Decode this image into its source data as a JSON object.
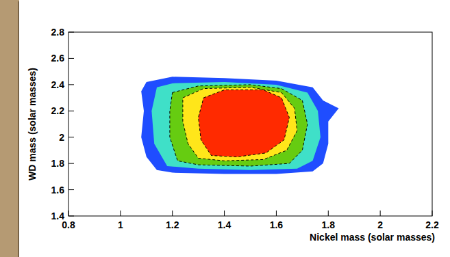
{
  "chart_data": {
    "type": "contour",
    "x_label": "Nickel mass (solar masses)",
    "y_label": "WD mass (solar masses)",
    "xlim": [
      0.8,
      2.2
    ],
    "ylim": [
      1.4,
      2.8
    ],
    "xticks": [
      0.8,
      1,
      1.2,
      1.4,
      1.6,
      1.8,
      2,
      2.2
    ],
    "yticks": [
      1.4,
      1.6,
      1.8,
      2,
      2.2,
      2.4,
      2.6,
      2.8
    ],
    "series": [
      {
        "color": "#1f4dff",
        "x": [
          1.1,
          1.2,
          1.4,
          1.6,
          1.74,
          1.78,
          1.84,
          1.8,
          1.8,
          1.78,
          1.74,
          1.6,
          1.4,
          1.2,
          1.14,
          1.1,
          1.08,
          1.09,
          1.08
        ],
        "values": [
          2.42,
          2.46,
          2.45,
          2.43,
          2.38,
          2.28,
          2.22,
          2.12,
          1.95,
          1.8,
          1.74,
          1.72,
          1.72,
          1.73,
          1.75,
          1.85,
          2.0,
          2.2,
          2.35
        ]
      },
      {
        "color": "#3fe0c8",
        "x": [
          1.14,
          1.2,
          1.4,
          1.6,
          1.72,
          1.76,
          1.77,
          1.74,
          1.68,
          1.5,
          1.3,
          1.18,
          1.13,
          1.12
        ],
        "values": [
          2.38,
          2.41,
          2.42,
          2.4,
          2.34,
          2.2,
          2.0,
          1.82,
          1.76,
          1.75,
          1.76,
          1.78,
          1.95,
          2.2
        ]
      },
      {
        "color": "#66cc11",
        "x": [
          1.2,
          1.3,
          1.5,
          1.62,
          1.7,
          1.72,
          1.7,
          1.65,
          1.5,
          1.3,
          1.22,
          1.19,
          1.19
        ],
        "values": [
          2.34,
          2.39,
          2.4,
          2.37,
          2.28,
          2.1,
          1.9,
          1.8,
          1.78,
          1.79,
          1.82,
          2.0,
          2.2
        ]
      },
      {
        "color": "#ffe61a",
        "x": [
          1.24,
          1.32,
          1.5,
          1.62,
          1.67,
          1.68,
          1.64,
          1.55,
          1.4,
          1.3,
          1.26,
          1.24
        ],
        "values": [
          2.3,
          2.37,
          2.38,
          2.34,
          2.22,
          2.05,
          1.9,
          1.83,
          1.82,
          1.84,
          1.95,
          2.12
        ]
      },
      {
        "color": "#ff2a00",
        "x": [
          1.32,
          1.4,
          1.55,
          1.62,
          1.65,
          1.63,
          1.56,
          1.45,
          1.35,
          1.31,
          1.3
        ],
        "values": [
          2.3,
          2.36,
          2.36,
          2.3,
          2.15,
          1.98,
          1.88,
          1.85,
          1.86,
          1.98,
          2.15
        ]
      }
    ]
  }
}
